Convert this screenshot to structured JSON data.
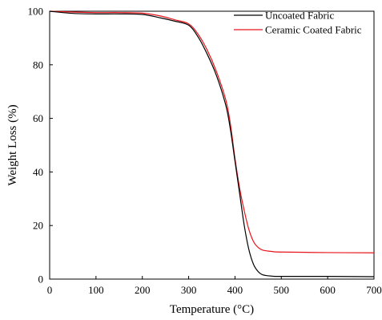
{
  "chart_data": {
    "type": "line",
    "title": "",
    "xlabel": "Temperature (°C)",
    "ylabel": "Weight Loss (%)",
    "xlim": [
      0,
      700
    ],
    "ylim": [
      0,
      100
    ],
    "xticks": [
      0,
      100,
      200,
      300,
      400,
      500,
      600,
      700
    ],
    "yticks": [
      0,
      20,
      40,
      60,
      80,
      100
    ],
    "grid": false,
    "legend_position": "top-right",
    "series": [
      {
        "name": "Uncoated Fabric",
        "color": "#000000",
        "x": [
          0,
          50,
          100,
          150,
          200,
          240,
          270,
          300,
          320,
          340,
          360,
          380,
          390,
          400,
          410,
          420,
          430,
          440,
          450,
          460,
          480,
          500,
          600,
          700
        ],
        "y": [
          100,
          99.2,
          99,
          99,
          98.8,
          97.5,
          96.3,
          94.8,
          90.5,
          84,
          76,
          65,
          56,
          44,
          32,
          20,
          11,
          5.5,
          2.8,
          1.6,
          1.1,
          1,
          1,
          0.9
        ]
      },
      {
        "name": "Ceramic Coated Fabric",
        "color": "#e8141b",
        "x": [
          0,
          50,
          100,
          150,
          200,
          240,
          270,
          300,
          320,
          340,
          360,
          380,
          390,
          400,
          410,
          420,
          430,
          440,
          450,
          460,
          480,
          500,
          600,
          700
        ],
        "y": [
          100,
          99.7,
          99.5,
          99.5,
          99.3,
          98.2,
          96.8,
          95.3,
          91.5,
          85.5,
          77.5,
          67,
          58,
          45,
          34,
          25.5,
          18.5,
          14,
          11.8,
          10.8,
          10.3,
          10.1,
          9.9,
          9.8
        ]
      }
    ]
  }
}
